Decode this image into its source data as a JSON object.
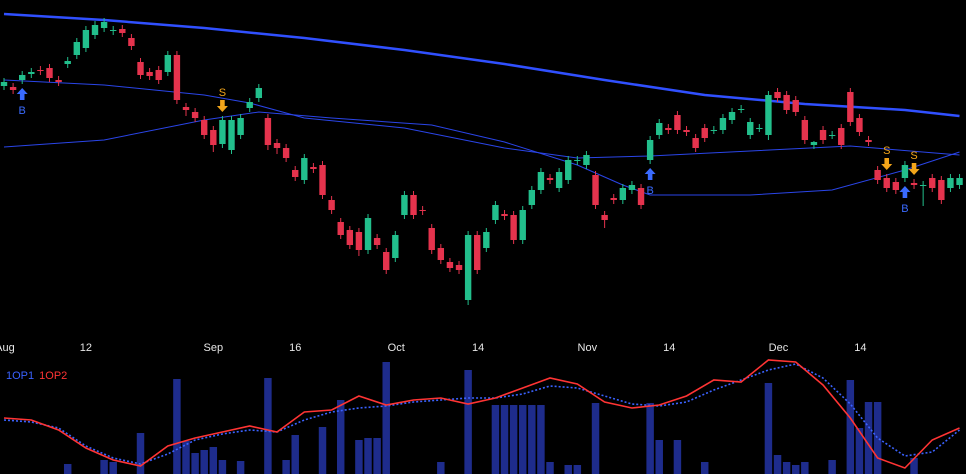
{
  "chart_data": [
    {
      "type": "candlestick",
      "up_color": "#22bf8c",
      "down_color": "#e5334d",
      "xlim": [
        -0.44,
        105.71
      ],
      "ylim": [
        5,
        340
      ],
      "xticks": [
        {
          "value": 0.1,
          "label": "Aug"
        },
        {
          "value": 9,
          "label": "12"
        },
        {
          "value": 23,
          "label": "Sep"
        },
        {
          "value": 32,
          "label": "16"
        },
        {
          "value": 43.1,
          "label": "Oct"
        },
        {
          "value": 52.1,
          "label": "14"
        },
        {
          "value": 64.1,
          "label": "Nov"
        },
        {
          "value": 73.1,
          "label": "14"
        },
        {
          "value": 85.1,
          "label": "Dec"
        },
        {
          "value": 94.1,
          "label": "14"
        }
      ],
      "x": [
        0,
        1,
        2,
        3,
        4,
        5,
        6,
        7,
        8,
        9,
        10,
        11,
        12,
        13,
        14,
        15,
        16,
        17,
        18,
        19,
        20,
        21,
        22,
        23,
        24,
        25,
        26,
        27,
        28,
        29,
        30,
        31,
        32,
        33,
        34,
        35,
        36,
        37,
        38,
        39,
        40,
        41,
        42,
        43,
        44,
        45,
        46,
        47,
        48,
        49,
        50,
        51,
        52,
        53,
        54,
        55,
        56,
        57,
        58,
        59,
        60,
        61,
        62,
        63,
        64,
        65,
        66,
        67,
        68,
        69,
        70,
        71,
        72,
        73,
        74,
        75,
        76,
        77,
        78,
        79,
        80,
        81,
        82,
        83,
        84,
        85,
        86,
        87,
        88,
        89,
        90,
        91,
        92,
        93,
        94,
        95,
        96,
        97,
        98,
        99,
        100,
        101,
        102,
        103,
        104,
        105
      ],
      "open": [
        254,
        253,
        260,
        266,
        270,
        272,
        260,
        276,
        285,
        292,
        305,
        312,
        309,
        311,
        302,
        278,
        268,
        270,
        268,
        285,
        233,
        228,
        220,
        210,
        196,
        190,
        205,
        232,
        242,
        222,
        197,
        192,
        170,
        160,
        173,
        175,
        140,
        118,
        110,
        108,
        90,
        102,
        88,
        82,
        125,
        145,
        130,
        112,
        92,
        78,
        75,
        40,
        105,
        92,
        120,
        126,
        125,
        100,
        135,
        150,
        162,
        152,
        160,
        179,
        175,
        165,
        125,
        142,
        140,
        150,
        152,
        180,
        205,
        212,
        225,
        210,
        202,
        212,
        210,
        210,
        220,
        230,
        205,
        212,
        205,
        248,
        245,
        240,
        220,
        195,
        210,
        205,
        212,
        248,
        222,
        200,
        170,
        162,
        158,
        162,
        157,
        155,
        162,
        160,
        152,
        155
      ],
      "close": [
        258,
        250,
        265,
        268,
        269,
        262,
        258,
        279,
        298,
        310,
        315,
        318,
        310,
        307,
        294,
        265,
        264,
        260,
        285,
        240,
        230,
        222,
        205,
        195,
        220,
        220,
        222,
        238,
        252,
        195,
        192,
        182,
        163,
        182,
        171,
        145,
        130,
        105,
        95,
        90,
        122,
        95,
        70,
        105,
        145,
        125,
        129,
        90,
        80,
        72,
        70,
        105,
        70,
        108,
        135,
        124,
        100,
        130,
        150,
        168,
        160,
        168,
        180,
        180,
        185,
        135,
        120,
        140,
        152,
        155,
        135,
        200,
        217,
        210,
        210,
        208,
        192,
        202,
        210,
        222,
        228,
        231,
        218,
        212,
        245,
        242,
        230,
        228,
        200,
        198,
        200,
        205,
        195,
        218,
        208,
        198,
        160,
        152,
        150,
        175,
        155,
        155,
        152,
        140,
        162,
        162
      ],
      "high": [
        262,
        257,
        269,
        272,
        274,
        276,
        264,
        283,
        302,
        314,
        319,
        322,
        314,
        315,
        306,
        282,
        272,
        274,
        289,
        289,
        237,
        232,
        224,
        214,
        224,
        224,
        226,
        242,
        256,
        226,
        201,
        196,
        174,
        186,
        177,
        179,
        144,
        122,
        114,
        112,
        126,
        106,
        92,
        109,
        149,
        149,
        134,
        116,
        96,
        82,
        79,
        109,
        109,
        112,
        139,
        130,
        129,
        134,
        154,
        172,
        166,
        172,
        184,
        184,
        189,
        169,
        129,
        146,
        156,
        159,
        156,
        204,
        221,
        216,
        229,
        214,
        206,
        216,
        214,
        226,
        232,
        235,
        222,
        216,
        249,
        252,
        249,
        244,
        224,
        199,
        214,
        209,
        216,
        252,
        226,
        204,
        174,
        166,
        162,
        179,
        161,
        159,
        166,
        164,
        166,
        166
      ],
      "low": [
        250,
        246,
        256,
        262,
        265,
        258,
        254,
        272,
        281,
        288,
        301,
        308,
        305,
        303,
        290,
        261,
        260,
        256,
        264,
        236,
        224,
        218,
        201,
        188,
        192,
        186,
        201,
        228,
        238,
        190,
        186,
        178,
        159,
        156,
        167,
        141,
        126,
        101,
        91,
        84,
        86,
        91,
        66,
        78,
        121,
        121,
        125,
        86,
        76,
        68,
        66,
        35,
        66,
        88,
        116,
        120,
        96,
        96,
        131,
        146,
        156,
        148,
        156,
        175,
        171,
        131,
        112,
        136,
        136,
        146,
        131,
        176,
        201,
        206,
        206,
        204,
        188,
        198,
        206,
        206,
        216,
        227,
        201,
        208,
        200,
        238,
        226,
        224,
        196,
        191,
        196,
        201,
        191,
        214,
        204,
        194,
        156,
        148,
        146,
        158,
        151,
        134,
        148,
        136,
        148,
        151
      ],
      "lines": [
        {
          "color": "#3050ff",
          "width": 2.5,
          "x": [
            0,
            11,
            22,
            33,
            44,
            55,
            66,
            77,
            88,
            99,
            105
          ],
          "values": [
            326,
            320,
            312,
            302,
            290,
            276,
            260,
            245,
            236,
            230,
            224
          ]
        },
        {
          "color": "#2a45e8",
          "width": 1,
          "x": [
            0,
            11,
            22,
            27,
            33,
            44,
            55,
            63,
            71,
            82,
            93,
            105
          ],
          "values": [
            260,
            255,
            245,
            237,
            222,
            212,
            192,
            182,
            184,
            189,
            194,
            185
          ]
        },
        {
          "color": "#2a45e8",
          "width": 1,
          "x": [
            0,
            11,
            22,
            28,
            36,
            47,
            55,
            63,
            68,
            71,
            82,
            91,
            99,
            105
          ],
          "values": [
            193,
            200,
            220,
            228,
            222,
            215,
            198,
            175,
            155,
            145,
            145,
            150,
            170,
            188
          ]
        }
      ],
      "signals": {
        "buy_color": "#3a6bff",
        "sell_color": "#f2a51a",
        "x": [
          2,
          24,
          71,
          97,
          99,
          100
        ],
        "labels": [
          "B",
          "S",
          "B",
          "S",
          "B",
          "S"
        ]
      }
    },
    {
      "type": "bar",
      "ylim": [
        0,
        120
      ],
      "xlim": [
        -0.44,
        105.71
      ],
      "bar_color": "#1e2c8c",
      "bars": {
        "x": [
          7,
          11,
          12,
          15,
          19,
          20,
          21,
          22,
          23,
          24,
          26,
          29,
          31,
          32,
          35,
          37,
          39,
          40,
          41,
          42,
          48,
          51,
          54,
          55,
          56,
          57,
          58,
          59,
          60,
          62,
          63,
          65,
          71,
          72,
          74,
          77,
          84,
          85,
          86,
          87,
          88,
          91,
          93,
          94,
          95,
          96,
          100
        ],
        "values": [
          10,
          14,
          12,
          41,
          95,
          33,
          21,
          24,
          27,
          14,
          13,
          96,
          14,
          39,
          47,
          74,
          34,
          36,
          36,
          112,
          12,
          104,
          69,
          69,
          69,
          69,
          69,
          69,
          12,
          9,
          9,
          71,
          71,
          34,
          34,
          12,
          91,
          19,
          12,
          9,
          12,
          14,
          94,
          46,
          72,
          72,
          16
        ]
      },
      "series": [
        {
          "name": "1OP1",
          "color": "#3a62ff",
          "dotted": true,
          "x": [
            0,
            3,
            6,
            9,
            12,
            15,
            18,
            21,
            24,
            27,
            30,
            33,
            36,
            39,
            42,
            45,
            48,
            51,
            54,
            57,
            60,
            63,
            66,
            69,
            72,
            75,
            78,
            81,
            84,
            87,
            90,
            93,
            96,
            99,
            102,
            105
          ],
          "values": [
            54,
            52,
            46,
            28,
            16,
            10,
            20,
            34,
            40,
            44,
            42,
            54,
            62,
            66,
            68,
            72,
            74,
            76,
            76,
            80,
            88,
            86,
            78,
            70,
            68,
            72,
            84,
            94,
            104,
            110,
            96,
            70,
            36,
            18,
            22,
            44
          ]
        },
        {
          "name": "1OP2",
          "color": "#ff3434",
          "dotted": false,
          "x": [
            0,
            3,
            6,
            9,
            12,
            15,
            18,
            21,
            24,
            27,
            30,
            33,
            36,
            39,
            42,
            45,
            48,
            51,
            54,
            57,
            60,
            63,
            66,
            69,
            72,
            75,
            78,
            81,
            84,
            87,
            90,
            93,
            96,
            99,
            102,
            105
          ],
          "values": [
            56,
            54,
            44,
            26,
            14,
            8,
            28,
            36,
            42,
            48,
            42,
            62,
            64,
            78,
            69,
            74,
            76,
            70,
            76,
            86,
            96,
            90,
            72,
            66,
            69,
            78,
            94,
            92,
            114,
            112,
            89,
            56,
            16,
            6,
            34,
            46
          ]
        }
      ]
    }
  ]
}
